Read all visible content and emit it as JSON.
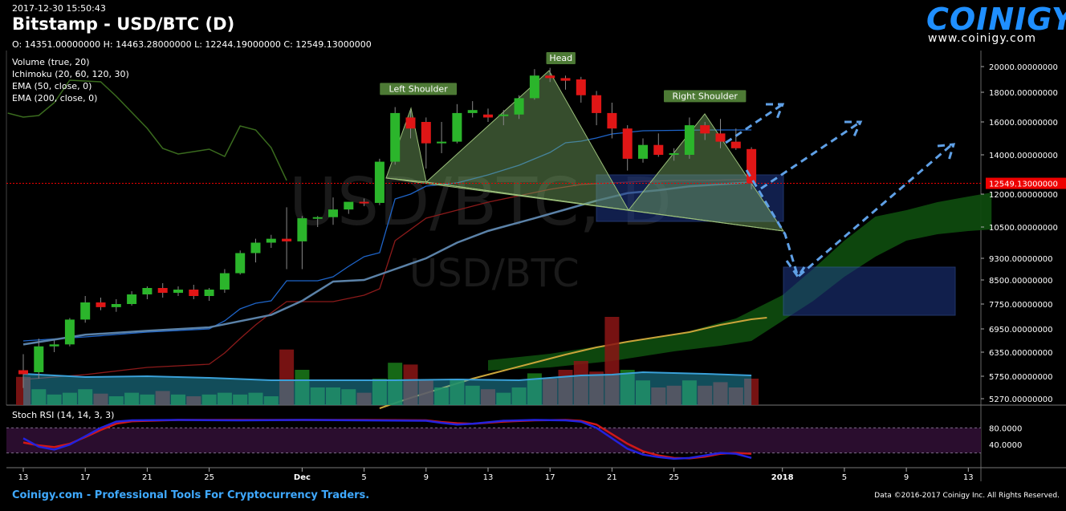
{
  "header": {
    "timestamp": "2017-12-30 15:50:43",
    "title": "Bitstamp - USD/BTC (D)",
    "ohlc": "O: 14351.00000000 H: 14463.28000000 L: 12244.19000000 C: 12549.13000000"
  },
  "indicators": [
    "Volume (true, 20)",
    "Ichimoku (20, 60, 120, 30)",
    "EMA (50, close, 0)",
    "EMA (200, close, 0)"
  ],
  "logo": {
    "name": "COINIGY",
    "url": "www.coinigy.com"
  },
  "watermark": {
    "big": "USD/BTC, D",
    "small": "USD/BTC"
  },
  "footer": {
    "left": "Coinigy.com - Professional Tools For Cryptocurrency Traders.",
    "right": "Data ©2016-2017 Coinigy Inc. All Rights Reserved."
  },
  "stoch": {
    "label": "Stoch RSI (14, 14, 3, 3)",
    "ticks": [
      "80.0000",
      "40.0000"
    ]
  },
  "chart_data": {
    "type": "candlestick",
    "price_ticks": [
      20000,
      18000,
      16000,
      14000,
      12000,
      10500,
      9300,
      8500,
      7750,
      6950,
      6350,
      5750,
      5270
    ],
    "price_tick_labels": [
      "20000.00000000",
      "18000.00000000",
      "16000.00000000",
      "14000.00000000",
      "12000.00000000",
      "10500.00000000",
      "9300.00000000",
      "8500.00000000",
      "7750.00000000",
      "6950.00000000",
      "6350.00000000",
      "5750.00000000",
      "5270.00000000"
    ],
    "current_price": 12549.13,
    "current_price_label": "12549.13000000",
    "x_labels": [
      "13",
      "17",
      "21",
      "25",
      "Dec",
      "5",
      "9",
      "13",
      "17",
      "21",
      "25",
      "2018",
      "5",
      "9",
      "13"
    ],
    "x_label_days": [
      0,
      4,
      8,
      12,
      18,
      22,
      26,
      30,
      34,
      38,
      42,
      49,
      53,
      57,
      61
    ],
    "candles": [
      {
        "d": 0,
        "o": 5900,
        "h": 6300,
        "l": 5500,
        "c": 5800
      },
      {
        "d": 1,
        "o": 5850,
        "h": 6700,
        "l": 5700,
        "c": 6500
      },
      {
        "d": 2,
        "o": 6500,
        "h": 6650,
        "l": 6350,
        "c": 6550
      },
      {
        "d": 3,
        "o": 6550,
        "h": 7300,
        "l": 6500,
        "c": 7250
      },
      {
        "d": 4,
        "o": 7250,
        "h": 8000,
        "l": 7150,
        "c": 7800
      },
      {
        "d": 5,
        "o": 7800,
        "h": 7950,
        "l": 7550,
        "c": 7650
      },
      {
        "d": 6,
        "o": 7650,
        "h": 7900,
        "l": 7500,
        "c": 7750
      },
      {
        "d": 7,
        "o": 7750,
        "h": 8150,
        "l": 7700,
        "c": 8050
      },
      {
        "d": 8,
        "o": 8050,
        "h": 8300,
        "l": 7900,
        "c": 8250
      },
      {
        "d": 9,
        "o": 8250,
        "h": 8400,
        "l": 7950,
        "c": 8100
      },
      {
        "d": 10,
        "o": 8100,
        "h": 8300,
        "l": 8000,
        "c": 8200
      },
      {
        "d": 11,
        "o": 8200,
        "h": 8350,
        "l": 7900,
        "c": 8000
      },
      {
        "d": 12,
        "o": 8000,
        "h": 8250,
        "l": 7850,
        "c": 8200
      },
      {
        "d": 13,
        "o": 8200,
        "h": 8900,
        "l": 8100,
        "c": 8750
      },
      {
        "d": 14,
        "o": 8750,
        "h": 9600,
        "l": 8700,
        "c": 9500
      },
      {
        "d": 15,
        "o": 9500,
        "h": 10050,
        "l": 9150,
        "c": 9900
      },
      {
        "d": 16,
        "o": 9900,
        "h": 10200,
        "l": 9700,
        "c": 10050
      },
      {
        "d": 17,
        "o": 10050,
        "h": 11400,
        "l": 8900,
        "c": 9950
      },
      {
        "d": 18,
        "o": 9950,
        "h": 11000,
        "l": 8900,
        "c": 10900
      },
      {
        "d": 19,
        "o": 10900,
        "h": 11000,
        "l": 10500,
        "c": 10950
      },
      {
        "d": 20,
        "o": 10950,
        "h": 11850,
        "l": 10600,
        "c": 11300
      },
      {
        "d": 21,
        "o": 11300,
        "h": 11650,
        "l": 11100,
        "c": 11650
      },
      {
        "d": 22,
        "o": 11650,
        "h": 11800,
        "l": 11450,
        "c": 11600
      },
      {
        "d": 23,
        "o": 11600,
        "h": 13800,
        "l": 11500,
        "c": 13650
      },
      {
        "d": 24,
        "o": 13650,
        "h": 17000,
        "l": 13500,
        "c": 16600
      },
      {
        "d": 25,
        "o": 16300,
        "h": 16800,
        "l": 15000,
        "c": 15600
      },
      {
        "d": 26,
        "o": 16000,
        "h": 16300,
        "l": 13300,
        "c": 14700
      },
      {
        "d": 27,
        "o": 14700,
        "h": 16000,
        "l": 14100,
        "c": 14800
      },
      {
        "d": 28,
        "o": 14800,
        "h": 17200,
        "l": 14700,
        "c": 16600
      },
      {
        "d": 29,
        "o": 16600,
        "h": 17400,
        "l": 16300,
        "c": 16800
      },
      {
        "d": 30,
        "o": 16500,
        "h": 16900,
        "l": 16000,
        "c": 16300
      },
      {
        "d": 31,
        "o": 16400,
        "h": 16800,
        "l": 15800,
        "c": 16500
      },
      {
        "d": 32,
        "o": 16500,
        "h": 17800,
        "l": 16200,
        "c": 17600
      },
      {
        "d": 33,
        "o": 17600,
        "h": 19800,
        "l": 17500,
        "c": 19300
      },
      {
        "d": 34,
        "o": 19300,
        "h": 19900,
        "l": 18800,
        "c": 19100
      },
      {
        "d": 35,
        "o": 19100,
        "h": 19300,
        "l": 18200,
        "c": 18900
      },
      {
        "d": 36,
        "o": 19000,
        "h": 19200,
        "l": 17300,
        "c": 17800
      },
      {
        "d": 37,
        "o": 17800,
        "h": 18100,
        "l": 15800,
        "c": 16600
      },
      {
        "d": 38,
        "o": 16600,
        "h": 17300,
        "l": 15000,
        "c": 15600
      },
      {
        "d": 39,
        "o": 15600,
        "h": 15800,
        "l": 13200,
        "c": 13800
      },
      {
        "d": 40,
        "o": 13800,
        "h": 15000,
        "l": 13600,
        "c": 14600
      },
      {
        "d": 41,
        "o": 14600,
        "h": 15300,
        "l": 13900,
        "c": 14000
      },
      {
        "d": 42,
        "o": 14000,
        "h": 14400,
        "l": 13700,
        "c": 14100
      },
      {
        "d": 43,
        "o": 14000,
        "h": 16300,
        "l": 13800,
        "c": 15800
      },
      {
        "d": 44,
        "o": 15800,
        "h": 16000,
        "l": 14900,
        "c": 15300
      },
      {
        "d": 45,
        "o": 15300,
        "h": 16200,
        "l": 14400,
        "c": 14800
      },
      {
        "d": 46,
        "o": 14800,
        "h": 15600,
        "l": 14300,
        "c": 14400
      },
      {
        "d": 47,
        "o": 14351,
        "h": 14463,
        "l": 12244,
        "c": 12549
      }
    ],
    "volume": [
      {
        "d": 0,
        "v": 0.32,
        "up": false
      },
      {
        "d": 1,
        "v": 0.18,
        "up": true
      },
      {
        "d": 2,
        "v": 0.12,
        "up": true
      },
      {
        "d": 3,
        "v": 0.14,
        "up": true
      },
      {
        "d": 4,
        "v": 0.18,
        "up": true
      },
      {
        "d": 5,
        "v": 0.13,
        "up": false
      },
      {
        "d": 6,
        "v": 0.1,
        "up": true
      },
      {
        "d": 7,
        "v": 0.14,
        "up": true
      },
      {
        "d": 8,
        "v": 0.12,
        "up": true
      },
      {
        "d": 9,
        "v": 0.16,
        "up": false
      },
      {
        "d": 10,
        "v": 0.12,
        "up": true
      },
      {
        "d": 11,
        "v": 0.1,
        "up": false
      },
      {
        "d": 12,
        "v": 0.12,
        "up": true
      },
      {
        "d": 13,
        "v": 0.14,
        "up": true
      },
      {
        "d": 14,
        "v": 0.12,
        "up": true
      },
      {
        "d": 15,
        "v": 0.14,
        "up": true
      },
      {
        "d": 16,
        "v": 0.1,
        "up": true
      },
      {
        "d": 17,
        "v": 0.63,
        "up": false
      },
      {
        "d": 18,
        "v": 0.4,
        "up": true
      },
      {
        "d": 19,
        "v": 0.2,
        "up": true
      },
      {
        "d": 20,
        "v": 0.2,
        "up": true
      },
      {
        "d": 21,
        "v": 0.18,
        "up": true
      },
      {
        "d": 22,
        "v": 0.14,
        "up": false
      },
      {
        "d": 23,
        "v": 0.3,
        "up": true
      },
      {
        "d": 24,
        "v": 0.48,
        "up": true
      },
      {
        "d": 25,
        "v": 0.46,
        "up": false
      },
      {
        "d": 26,
        "v": 0.28,
        "up": false
      },
      {
        "d": 27,
        "v": 0.2,
        "up": true
      },
      {
        "d": 28,
        "v": 0.3,
        "up": true
      },
      {
        "d": 29,
        "v": 0.22,
        "up": true
      },
      {
        "d": 30,
        "v": 0.18,
        "up": false
      },
      {
        "d": 31,
        "v": 0.14,
        "up": true
      },
      {
        "d": 32,
        "v": 0.2,
        "up": true
      },
      {
        "d": 33,
        "v": 0.36,
        "up": true
      },
      {
        "d": 34,
        "v": 0.3,
        "up": false
      },
      {
        "d": 35,
        "v": 0.4,
        "up": false
      },
      {
        "d": 36,
        "v": 0.5,
        "up": false
      },
      {
        "d": 37,
        "v": 0.38,
        "up": false
      },
      {
        "d": 38,
        "v": 1.0,
        "up": false
      },
      {
        "d": 39,
        "v": 0.4,
        "up": true
      },
      {
        "d": 40,
        "v": 0.28,
        "up": true
      },
      {
        "d": 41,
        "v": 0.2,
        "up": false
      },
      {
        "d": 42,
        "v": 0.22,
        "up": false
      },
      {
        "d": 43,
        "v": 0.28,
        "up": true
      },
      {
        "d": 44,
        "v": 0.22,
        "up": false
      },
      {
        "d": 45,
        "v": 0.26,
        "up": false
      },
      {
        "d": 46,
        "v": 0.2,
        "up": false
      },
      {
        "d": 47,
        "v": 0.3,
        "up": false
      }
    ],
    "ema50": [
      [
        0,
        6550
      ],
      [
        4,
        6800
      ],
      [
        8,
        6900
      ],
      [
        12,
        7000
      ],
      [
        16,
        7400
      ],
      [
        18,
        7850
      ],
      [
        20,
        8450
      ],
      [
        22,
        8500
      ],
      [
        24,
        8900
      ],
      [
        26,
        9300
      ],
      [
        28,
        9900
      ],
      [
        30,
        10350
      ],
      [
        33,
        10900
      ],
      [
        35,
        11300
      ],
      [
        37,
        11700
      ],
      [
        39,
        12050
      ],
      [
        41,
        12200
      ],
      [
        43,
        12400
      ],
      [
        45,
        12500
      ],
      [
        47,
        12600
      ]
    ],
    "ema200": [
      [
        0,
        5700
      ],
      [
        4,
        5800
      ],
      [
        8,
        5900
      ],
      [
        12,
        6050
      ],
      [
        16,
        6200
      ],
      [
        20,
        6500
      ],
      [
        24,
        7100
      ],
      [
        27,
        7750
      ],
      [
        30,
        8300
      ],
      [
        33,
        8800
      ],
      [
        36,
        9100
      ],
      [
        39,
        9400
      ],
      [
        42,
        9700
      ],
      [
        45,
        10150
      ],
      [
        47,
        10700
      ]
    ],
    "stoch_k": [
      [
        0,
        55
      ],
      [
        1,
        35
      ],
      [
        2,
        28
      ],
      [
        3,
        40
      ],
      [
        4,
        60
      ],
      [
        5,
        80
      ],
      [
        6,
        95
      ],
      [
        7,
        98
      ],
      [
        10,
        99
      ],
      [
        14,
        98
      ],
      [
        18,
        99
      ],
      [
        22,
        98
      ],
      [
        26,
        97
      ],
      [
        27,
        92
      ],
      [
        28,
        88
      ],
      [
        29,
        90
      ],
      [
        31,
        97
      ],
      [
        33,
        99
      ],
      [
        35,
        98
      ],
      [
        36,
        95
      ],
      [
        37,
        80
      ],
      [
        38,
        55
      ],
      [
        39,
        30
      ],
      [
        40,
        16
      ],
      [
        41,
        10
      ],
      [
        42,
        6
      ],
      [
        43,
        8
      ],
      [
        44,
        14
      ],
      [
        45,
        20
      ],
      [
        46,
        18
      ],
      [
        47,
        8
      ]
    ],
    "stoch_d": [
      [
        0,
        45
      ],
      [
        1,
        38
      ],
      [
        2,
        34
      ],
      [
        3,
        42
      ],
      [
        4,
        58
      ],
      [
        5,
        75
      ],
      [
        6,
        90
      ],
      [
        7,
        96
      ],
      [
        10,
        99
      ],
      [
        14,
        99
      ],
      [
        18,
        99
      ],
      [
        22,
        99
      ],
      [
        26,
        98
      ],
      [
        27,
        94
      ],
      [
        28,
        91
      ],
      [
        29,
        90
      ],
      [
        31,
        95
      ],
      [
        33,
        98
      ],
      [
        35,
        99
      ],
      [
        36,
        97
      ],
      [
        37,
        88
      ],
      [
        38,
        65
      ],
      [
        39,
        42
      ],
      [
        40,
        24
      ],
      [
        41,
        14
      ],
      [
        42,
        8
      ],
      [
        43,
        7
      ],
      [
        44,
        11
      ],
      [
        45,
        18
      ],
      [
        46,
        20
      ],
      [
        47,
        18
      ]
    ],
    "annotations": [
      {
        "text": "Left Shoulder",
        "d": 25.5,
        "price": 18100
      },
      {
        "text": "Head",
        "d": 34.7,
        "price": 20500
      },
      {
        "text": "Right Shoulder",
        "d": 44,
        "price": 17600
      }
    ]
  }
}
